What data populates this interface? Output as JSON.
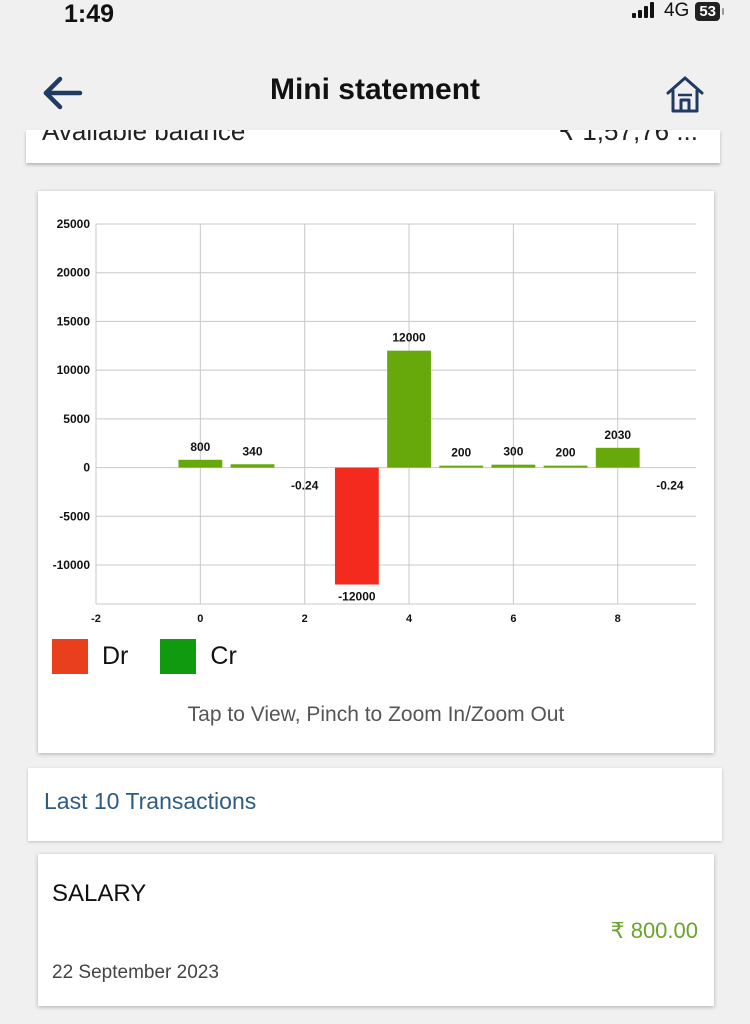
{
  "status_bar": {
    "time": "1:49",
    "network": "4G",
    "battery": "53"
  },
  "header": {
    "title": "Mini statement",
    "back_icon": "arrow-left-icon",
    "home_icon": "home-icon"
  },
  "balance": {
    "label": "Available balance",
    "value": "₹ 1,57,76 ..."
  },
  "colors": {
    "debit": "#f52a1f",
    "credit": "#67a90a",
    "legend_debit": "#ea3f1c",
    "legend_credit": "#0f9a0f",
    "accent": "#2d5b82",
    "amount": "#6ba42a"
  },
  "chart_data": {
    "type": "bar",
    "x": [
      0,
      1,
      2,
      3,
      4,
      5,
      6,
      7,
      8,
      9
    ],
    "values": [
      800,
      340,
      -0.24,
      -12000,
      12000,
      200,
      300,
      200,
      2030,
      -0.24
    ],
    "data_labels": [
      "800",
      "340",
      "-0.24",
      "-12000",
      "12000",
      "200",
      "300",
      "200",
      "2030",
      "-0.24"
    ],
    "xlim": [
      -2,
      9.5
    ],
    "ylim": [
      -14000,
      25000
    ],
    "x_ticks": [
      -2,
      0,
      2,
      4,
      6,
      8
    ],
    "y_ticks": [
      25000,
      20000,
      15000,
      10000,
      5000,
      0,
      -5000,
      -10000
    ],
    "grid": true,
    "legend": [
      {
        "name": "Dr"
      },
      {
        "name": "Cr"
      }
    ],
    "legend_position": "bottom-left"
  },
  "chart_hint": "Tap to View, Pinch to Zoom In/Zoom Out",
  "transactions": {
    "header": "Last 10 Transactions",
    "items": [
      {
        "title": "SALARY",
        "amount": "₹ 800.00",
        "date": "22 September 2023"
      }
    ]
  }
}
